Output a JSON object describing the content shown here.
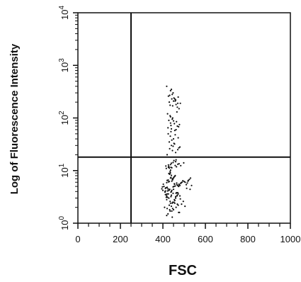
{
  "chart_data": {
    "type": "scatter",
    "title": "",
    "xlabel": "FSC",
    "ylabel": "Log of Fluorescence Intensity",
    "xlim": [
      0,
      1000
    ],
    "ylim": [
      1,
      10000
    ],
    "y_scale": "log",
    "grid": false,
    "legend": "none",
    "x_ticks": [
      {
        "value": 0,
        "label": "0"
      },
      {
        "value": 200,
        "label": "200"
      },
      {
        "value": 400,
        "label": "400"
      },
      {
        "value": 600,
        "label": "600"
      },
      {
        "value": 800,
        "label": "800"
      },
      {
        "value": 1000,
        "label": "1000"
      }
    ],
    "y_ticks": [
      {
        "value": 1,
        "base": "10",
        "exp": "0"
      },
      {
        "value": 10,
        "base": "10",
        "exp": "1"
      },
      {
        "value": 100,
        "base": "10",
        "exp": "2"
      },
      {
        "value": 1000,
        "base": "10",
        "exp": "3"
      },
      {
        "value": 10000,
        "base": "10",
        "exp": "4"
      }
    ],
    "gate_lines": {
      "x": 250,
      "y": 18
    },
    "series": [
      {
        "x": [
          410,
          455,
          430,
          470,
          445,
          420,
          480,
          440,
          460,
          425,
          450,
          435,
          465,
          415,
          490,
          428,
          452,
          474,
          438,
          446,
          412,
          458,
          432,
          468,
          442,
          422,
          484,
          436,
          462,
          426,
          448,
          434,
          466,
          418,
          494,
          430,
          456,
          478,
          440,
          444,
          414,
          454,
          428,
          472,
          446,
          424,
          486,
          438,
          464,
          420,
          452,
          436,
          470,
          416,
          500,
          432,
          458,
          476,
          442,
          450,
          418,
          460,
          434,
          466,
          444,
          426,
          482,
          440,
          456,
          422,
          446,
          438,
          468,
          412,
          496,
          428,
          454,
          480,
          436,
          448,
          408,
          450,
          430,
          474,
          440,
          420,
          488,
          442,
          462,
          424,
          456,
          432,
          472,
          418,
          504,
          434,
          452,
          478,
          444,
          446,
          416,
          458,
          436,
          464,
          448,
          428,
          476,
          438,
          460,
          426,
          452,
          430,
          470,
          414,
          498,
          426,
          462,
          484,
          440,
          442,
          405,
          520,
          395,
          530,
          410,
          515,
          400,
          525,
          415,
          510,
          420,
          505,
          398,
          535,
          412,
          518,
          402,
          528,
          418,
          512,
          420,
          470,
          440,
          460,
          430,
          480,
          450,
          445,
          435,
          455,
          425,
          475,
          442,
          462,
          432,
          472,
          452,
          438,
          448,
          458,
          424,
          468,
          436,
          456,
          428,
          478,
          446,
          440,
          434,
          464,
          422,
          474,
          444,
          466,
          438,
          476,
          450,
          436,
          446,
          454,
          430,
          462,
          442,
          468,
          426,
          482,
          448,
          434,
          440,
          458,
          418,
          472,
          444,
          460,
          436,
          470,
          452,
          432,
          450,
          456
        ],
        "y": [
          4.0,
          5.5,
          6.2,
          3.8,
          7.0,
          4.8,
          5.2,
          8.1,
          3.2,
          6.6,
          4.4,
          9.0,
          5.8,
          3.5,
          6.0,
          4.2,
          7.5,
          5.0,
          3.9,
          6.8,
          4.6,
          5.1,
          8.5,
          3.4,
          6.3,
          4.1,
          5.7,
          7.2,
          3.7,
          6.1,
          4.9,
          9.5,
          5.4,
          3.3,
          6.4,
          4.3,
          7.8,
          5.3,
          4.0,
          7.0,
          4.7,
          5.6,
          8.8,
          3.6,
          6.7,
          4.5,
          5.9,
          7.4,
          3.8,
          6.5,
          5.0,
          10.2,
          5.2,
          3.1,
          6.2,
          4.4,
          8.0,
          5.5,
          4.2,
          7.2,
          2.8,
          3.0,
          2.6,
          3.3,
          2.4,
          3.6,
          2.9,
          3.4,
          2.7,
          3.1,
          2.5,
          3.2,
          2.3,
          3.5,
          2.6,
          3.0,
          2.8,
          3.3,
          2.4,
          3.7,
          2.0,
          1.8,
          2.2,
          1.6,
          2.1,
          1.9,
          2.3,
          1.7,
          2.0,
          1.5,
          2.4,
          1.8,
          2.2,
          1.4,
          2.1,
          1.7,
          2.5,
          1.6,
          1.3,
          1.9,
          11.0,
          12.5,
          13.0,
          11.8,
          14.2,
          12.0,
          13.5,
          11.5,
          14.8,
          12.8,
          15.5,
          11.2,
          13.2,
          12.2,
          14.0,
          11.6,
          16.0,
          12.4,
          13.8,
          11.3,
          5.0,
          6.5,
          4.5,
          7.2,
          3.9,
          5.8,
          4.2,
          6.8,
          4.7,
          5.4,
          3.6,
          6.0,
          4.9,
          5.2,
          4.1,
          6.3,
          5.5,
          4.4,
          5.9,
          4.6,
          20,
          25,
          30,
          22,
          35,
          28,
          40,
          24,
          45,
          32,
          50,
          27,
          38,
          60,
          26,
          42,
          33,
          55,
          29,
          48,
          65,
          70,
          80,
          58,
          90,
          75,
          100,
          62,
          110,
          85,
          120,
          68,
          95,
          130,
          72,
          150,
          88,
          105,
          170,
          78,
          200,
          180,
          230,
          160,
          260,
          190,
          300,
          175,
          350,
          210,
          400,
          250,
          280,
          220,
          330,
          190,
          240,
          270,
          210,
          230
        ]
      }
    ]
  }
}
